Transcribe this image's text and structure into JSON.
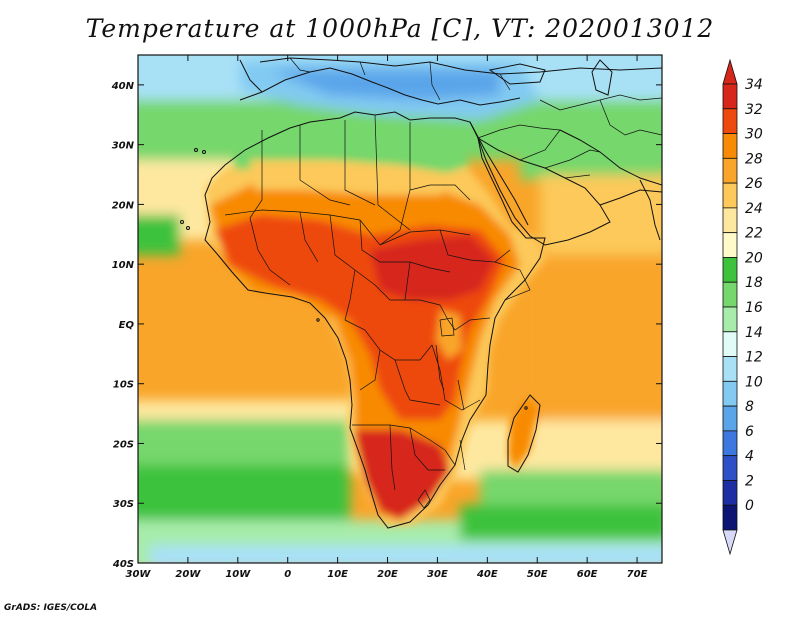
{
  "title": "Temperature at 1000hPa [C], VT: 2020013012",
  "credit": "GrADS: IGES/COLA",
  "map": {
    "lat_range": [
      -40,
      45
    ],
    "lon_range": [
      -30,
      75
    ],
    "lat_ticks": [
      {
        "value": 40,
        "label": "40N"
      },
      {
        "value": 30,
        "label": "30N"
      },
      {
        "value": 20,
        "label": "20N"
      },
      {
        "value": 10,
        "label": "10N"
      },
      {
        "value": 0,
        "label": "EQ"
      },
      {
        "value": -10,
        "label": "10S"
      },
      {
        "value": -20,
        "label": "20S"
      },
      {
        "value": -30,
        "label": "30S"
      },
      {
        "value": -40,
        "label": "40S"
      }
    ],
    "lon_ticks": [
      {
        "value": -30,
        "label": "30W"
      },
      {
        "value": -20,
        "label": "20W"
      },
      {
        "value": -10,
        "label": "10W"
      },
      {
        "value": 0,
        "label": "0"
      },
      {
        "value": 10,
        "label": "10E"
      },
      {
        "value": 20,
        "label": "20E"
      },
      {
        "value": 30,
        "label": "30E"
      },
      {
        "value": 40,
        "label": "40E"
      },
      {
        "value": 50,
        "label": "50E"
      },
      {
        "value": 60,
        "label": "60E"
      },
      {
        "value": 70,
        "label": "70E"
      }
    ]
  },
  "colorbar": {
    "labels": [
      "34",
      "32",
      "30",
      "28",
      "26",
      "24",
      "22",
      "20",
      "18",
      "16",
      "14",
      "12",
      "10",
      "8",
      "6",
      "4",
      "2",
      "0"
    ],
    "colors": [
      "#d7261a",
      "#ee4a0e",
      "#f88a06",
      "#f9a52a",
      "#fcc95a",
      "#fee8a0",
      "#fffac8",
      "#3dc23c",
      "#76d76c",
      "#a7ecaa",
      "#e1fbf6",
      "#a8e1f6",
      "#82caf2",
      "#5aa4ea",
      "#3d78e0",
      "#2d4fc8",
      "#1d2ea4",
      "#0c1474"
    ],
    "over_color": "#d7261a",
    "under_color": "#d8d9f6"
  }
}
